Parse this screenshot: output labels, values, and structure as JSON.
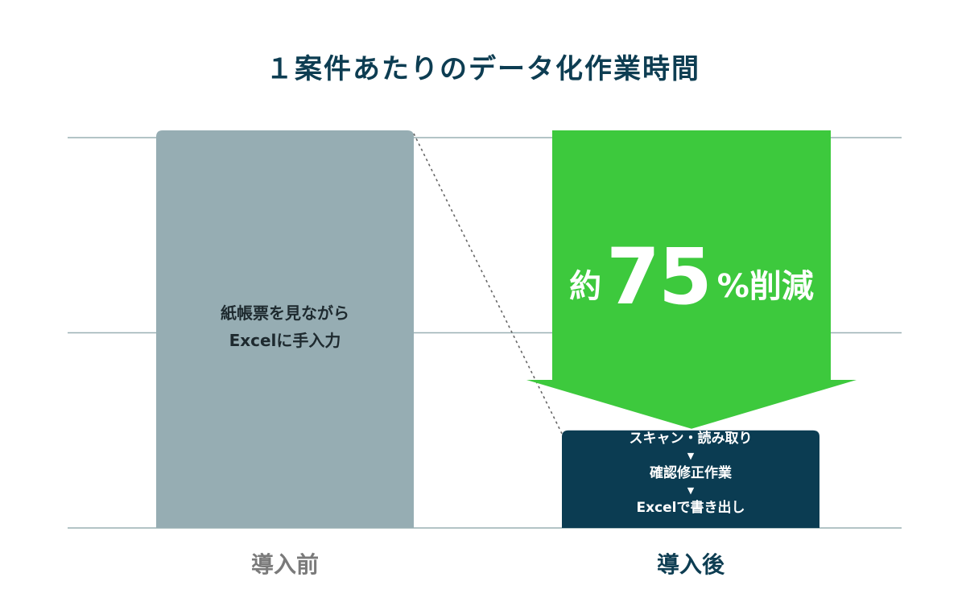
{
  "chart_data": {
    "type": "bar",
    "title": "１案件あたりのデータ化作業時間",
    "categories": [
      "導入前",
      "導入後"
    ],
    "values": [
      100,
      25
    ],
    "ylim": [
      0,
      100
    ],
    "grid": true,
    "before_bar_label": [
      "紙帳票を見ながら",
      "Excelに手入力"
    ],
    "after_bar_steps": [
      "スキャン・読み取り",
      "確認修正作業",
      "Excelで書き出し"
    ],
    "step_separator": "▼",
    "annotation": {
      "prefix": "約",
      "value": "75",
      "suffix": "%削減"
    },
    "colors": {
      "before_bar": "#96adb3",
      "after_bar": "#0b3c52",
      "arrow": "#3dc93d",
      "gridline": "#9ab0b4",
      "connector": "#666666"
    }
  }
}
